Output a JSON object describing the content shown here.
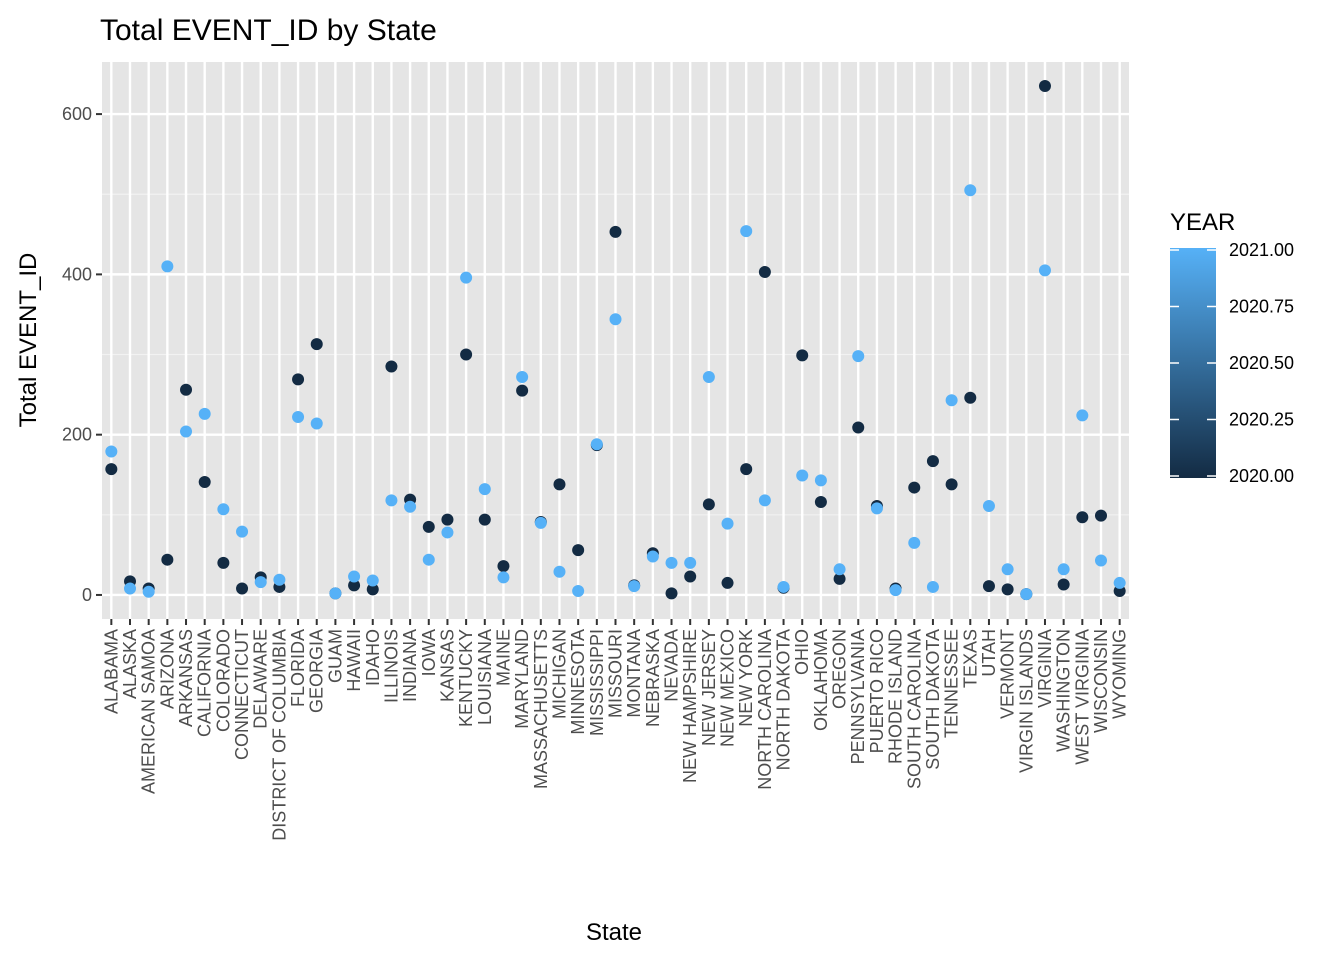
{
  "chart_data": {
    "type": "scatter",
    "title": "Total EVENT_ID by State",
    "xlabel": "State",
    "ylabel": "Total EVENT_ID",
    "ylim": [
      -30,
      665
    ],
    "yticks": [
      0,
      200,
      400,
      600
    ],
    "ytick_labels": [
      "0",
      "200",
      "400",
      "600"
    ],
    "grid": true,
    "background": "#e5e5e5",
    "legend": {
      "title": "YEAR",
      "placement": "right",
      "ticks": [
        "2021.00",
        "2020.75",
        "2020.50",
        "2020.25",
        "2020.00"
      ],
      "color_low": "#132b43",
      "color_high": "#56b1f7"
    },
    "categories": [
      "ALABAMA",
      "ALASKA",
      "AMERICAN SAMOA",
      "ARIZONA",
      "ARKANSAS",
      "CALIFORNIA",
      "COLORADO",
      "CONNECTICUT",
      "DELAWARE",
      "DISTRICT OF COLUMBIA",
      "FLORIDA",
      "GEORGIA",
      "GUAM",
      "HAWAII",
      "IDAHO",
      "ILLINOIS",
      "INDIANA",
      "IOWA",
      "KANSAS",
      "KENTUCKY",
      "LOUISIANA",
      "MAINE",
      "MARYLAND",
      "MASSACHUSETTS",
      "MICHIGAN",
      "MINNESOTA",
      "MISSISSIPPI",
      "MISSOURI",
      "MONTANA",
      "NEBRASKA",
      "NEVADA",
      "NEW HAMPSHIRE",
      "NEW JERSEY",
      "NEW MEXICO",
      "NEW YORK",
      "NORTH CAROLINA",
      "NORTH DAKOTA",
      "OHIO",
      "OKLAHOMA",
      "OREGON",
      "PENNSYLVANIA",
      "PUERTO RICO",
      "RHODE ISLAND",
      "SOUTH CAROLINA",
      "SOUTH DAKOTA",
      "TENNESSEE",
      "TEXAS",
      "UTAH",
      "VERMONT",
      "VIRGIN ISLANDS",
      "VIRGINIA",
      "WASHINGTON",
      "WEST VIRGINIA",
      "WISCONSIN",
      "WYOMING"
    ],
    "series": [
      {
        "year": 2020,
        "color": "#132b43",
        "values": [
          157,
          17,
          8,
          44,
          256,
          141,
          40,
          8,
          22,
          10,
          269,
          313,
          2,
          12,
          7,
          285,
          119,
          85,
          94,
          300,
          94,
          36,
          255,
          91,
          138,
          56,
          187,
          453,
          12,
          52,
          2,
          23,
          113,
          15,
          157,
          403,
          9,
          299,
          116,
          20,
          209,
          111,
          8,
          134,
          167,
          138,
          246,
          11,
          7,
          1,
          635,
          13,
          97,
          99,
          5
        ]
      },
      {
        "year": 2021,
        "color": "#56b1f7",
        "values": [
          179,
          8,
          4,
          410,
          204,
          226,
          107,
          79,
          16,
          19,
          222,
          214,
          2,
          23,
          18,
          118,
          110,
          44,
          78,
          396,
          132,
          22,
          272,
          90,
          29,
          5,
          188,
          344,
          11,
          48,
          40,
          40,
          272,
          89,
          454,
          118,
          10,
          149,
          143,
          32,
          298,
          108,
          6,
          65,
          10,
          243,
          505,
          111,
          32,
          1,
          405,
          32,
          224,
          43,
          15
        ]
      }
    ]
  }
}
